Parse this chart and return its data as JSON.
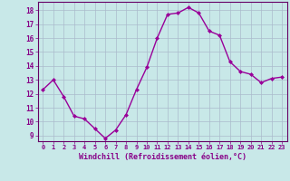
{
  "x": [
    0,
    1,
    2,
    3,
    4,
    5,
    6,
    7,
    8,
    9,
    10,
    11,
    12,
    13,
    14,
    15,
    16,
    17,
    18,
    19,
    20,
    21,
    22,
    23
  ],
  "y": [
    12.3,
    13.0,
    11.8,
    10.4,
    10.2,
    9.5,
    8.8,
    9.4,
    10.5,
    12.3,
    13.9,
    16.0,
    17.7,
    17.8,
    18.2,
    17.8,
    16.5,
    16.2,
    14.3,
    13.6,
    13.4,
    12.8,
    13.1,
    13.2
  ],
  "line_color": "#990099",
  "marker": "D",
  "marker_size": 2.0,
  "linewidth": 1.0,
  "xlabel": "Windchill (Refroidissement éolien,°C)",
  "ylim": [
    8.6,
    18.6
  ],
  "xlim": [
    -0.5,
    23.5
  ],
  "yticks": [
    9,
    10,
    11,
    12,
    13,
    14,
    15,
    16,
    17,
    18
  ],
  "xticks": [
    0,
    1,
    2,
    3,
    4,
    5,
    6,
    7,
    8,
    9,
    10,
    11,
    12,
    13,
    14,
    15,
    16,
    17,
    18,
    19,
    20,
    21,
    22,
    23
  ],
  "bg_color": "#c8e8e8",
  "grid_color": "#aabbcc",
  "label_color": "#880088",
  "tick_color": "#880088",
  "spine_color": "#660066"
}
